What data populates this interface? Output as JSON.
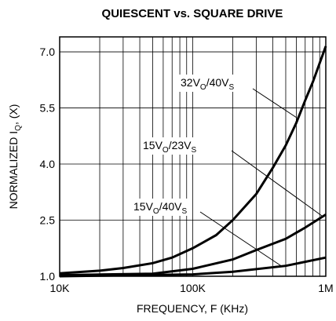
{
  "chart_data": {
    "type": "line",
    "title": "QUIESCENT vs. SQUARE DRIVE",
    "x_label": "FREQUENCY, F (KHz)",
    "y_label_parts": [
      "NORMALIZED I",
      "Q",
      ", (X)"
    ],
    "log_x": true,
    "grid": true,
    "color": "#000000",
    "xlim": [
      10000,
      1000000
    ],
    "xticks": [
      {
        "value": 10000,
        "label": "10K"
      },
      {
        "value": 100000,
        "label": "100K"
      },
      {
        "value": 1000000,
        "label": "1M"
      }
    ],
    "xgrid": [
      20000,
      30000,
      40000,
      50000,
      60000,
      70000,
      80000,
      90000,
      200000,
      300000,
      400000,
      500000,
      600000,
      700000,
      800000,
      900000
    ],
    "ylim": [
      1.0,
      7.4
    ],
    "yticks": [
      {
        "value": 1.0,
        "label": "1.0"
      },
      {
        "value": 2.5,
        "label": "2.5"
      },
      {
        "value": 4.0,
        "label": "4.0"
      },
      {
        "value": 5.5,
        "label": "5.5"
      },
      {
        "value": 7.0,
        "label": "7.0"
      }
    ],
    "series": [
      {
        "label_parts": [
          "32V",
          "O",
          "/40V",
          "S"
        ],
        "x": [
          10000,
          20000,
          30000,
          50000,
          70000,
          100000,
          150000,
          200000,
          300000,
          400000,
          500000,
          600000,
          700000,
          800000,
          1000000
        ],
        "values": [
          1.08,
          1.15,
          1.22,
          1.35,
          1.5,
          1.75,
          2.1,
          2.5,
          3.2,
          3.9,
          4.5,
          5.1,
          5.7,
          6.2,
          7.15
        ]
      },
      {
        "label_parts": [
          "15V",
          "O",
          "/23V",
          "S"
        ],
        "x": [
          10000,
          50000,
          100000,
          200000,
          300000,
          500000,
          700000,
          1000000
        ],
        "values": [
          1.03,
          1.07,
          1.2,
          1.45,
          1.7,
          2.0,
          2.3,
          2.65
        ]
      },
      {
        "label_parts": [
          "15V",
          "O",
          "/40V",
          "S"
        ],
        "x": [
          10000,
          100000,
          200000,
          500000,
          1000000
        ],
        "values": [
          1.0,
          1.05,
          1.12,
          1.28,
          1.5
        ]
      }
    ]
  }
}
